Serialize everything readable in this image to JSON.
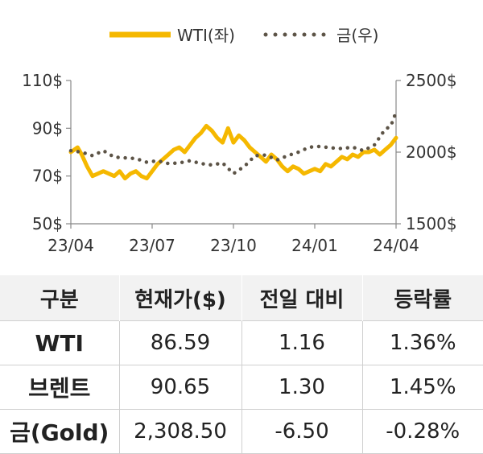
{
  "chart_data": {
    "type": "line",
    "legend": {
      "placement": "top-center",
      "entries": [
        {
          "label": "WTI(좌)",
          "series": "wti"
        },
        {
          "label": "금(우)",
          "series": "gold"
        }
      ]
    },
    "x_ticks": [
      "23/04",
      "23/07",
      "23/10",
      "24/01",
      "24/04"
    ],
    "y_left": {
      "ticks": [
        "110$",
        "90$",
        "70$",
        "50$"
      ],
      "values": [
        110,
        90,
        70,
        50
      ],
      "range": [
        50,
        110
      ]
    },
    "y_right": {
      "ticks": [
        "2500$",
        "2000$",
        "1500$"
      ],
      "values": [
        2500,
        2000,
        1500
      ],
      "range": [
        1500,
        2500
      ]
    },
    "x_range": [
      0,
      12
    ],
    "series": [
      {
        "id": "wti",
        "name": "WTI(좌)",
        "axis": "left",
        "color": "#f5b800",
        "style": "solid",
        "x": [
          0,
          0.25,
          0.4,
          0.6,
          0.8,
          1.0,
          1.2,
          1.4,
          1.6,
          1.8,
          2.0,
          2.2,
          2.4,
          2.6,
          2.8,
          3.0,
          3.2,
          3.4,
          3.6,
          3.8,
          4.0,
          4.2,
          4.4,
          4.6,
          4.8,
          5.0,
          5.2,
          5.4,
          5.6,
          5.8,
          6.0,
          6.2,
          6.4,
          6.6,
          6.8,
          7.0,
          7.2,
          7.4,
          7.6,
          7.8,
          8.0,
          8.2,
          8.4,
          8.6,
          8.8,
          9.0,
          9.2,
          9.4,
          9.6,
          9.8,
          10.0,
          10.2,
          10.4,
          10.6,
          10.8,
          11.0,
          11.2,
          11.4,
          11.6,
          11.8,
          12.0
        ],
        "y": [
          80,
          82,
          79,
          74,
          70,
          71,
          72,
          71,
          70,
          72,
          69,
          71,
          72,
          70,
          69,
          72,
          75,
          77,
          79,
          81,
          82,
          80,
          83,
          86,
          88,
          91,
          89,
          86,
          84,
          90,
          84,
          87,
          85,
          82,
          80,
          78,
          76,
          79,
          77,
          74,
          72,
          74,
          73,
          71,
          72,
          73,
          72,
          75,
          74,
          76,
          78,
          77,
          79,
          78,
          80,
          80,
          81,
          79,
          81,
          83,
          86
        ]
      },
      {
        "id": "gold",
        "name": "금(우)",
        "axis": "right",
        "color": "#5c5346",
        "style": "dotted",
        "x": [
          0,
          0.4,
          0.8,
          1.2,
          1.6,
          2.0,
          2.4,
          2.8,
          3.2,
          3.6,
          4.0,
          4.4,
          4.8,
          5.2,
          5.6,
          6.0,
          6.4,
          6.8,
          7.2,
          7.6,
          8.0,
          8.4,
          8.8,
          9.2,
          9.6,
          10.0,
          10.4,
          10.8,
          11.2,
          11.6,
          11.8,
          12.0
        ],
        "y": [
          2010,
          2000,
          1975,
          2010,
          1965,
          1960,
          1955,
          1930,
          1940,
          1920,
          1925,
          1940,
          1920,
          1910,
          1925,
          1850,
          1900,
          1975,
          1980,
          1945,
          1975,
          2000,
          2035,
          2040,
          2030,
          2025,
          2035,
          2010,
          2050,
          2160,
          2180,
          2280
        ]
      }
    ]
  },
  "table": {
    "headers": [
      "구분",
      "현재가($)",
      "전일 대비",
      "등락률"
    ],
    "rows": [
      [
        "WTI",
        "86.59",
        "1.16",
        "1.36%"
      ],
      [
        "브렌트",
        "90.65",
        "1.30",
        "1.45%"
      ],
      [
        "금(Gold)",
        "2,308.50",
        "-6.50",
        "-0.28%"
      ]
    ]
  }
}
